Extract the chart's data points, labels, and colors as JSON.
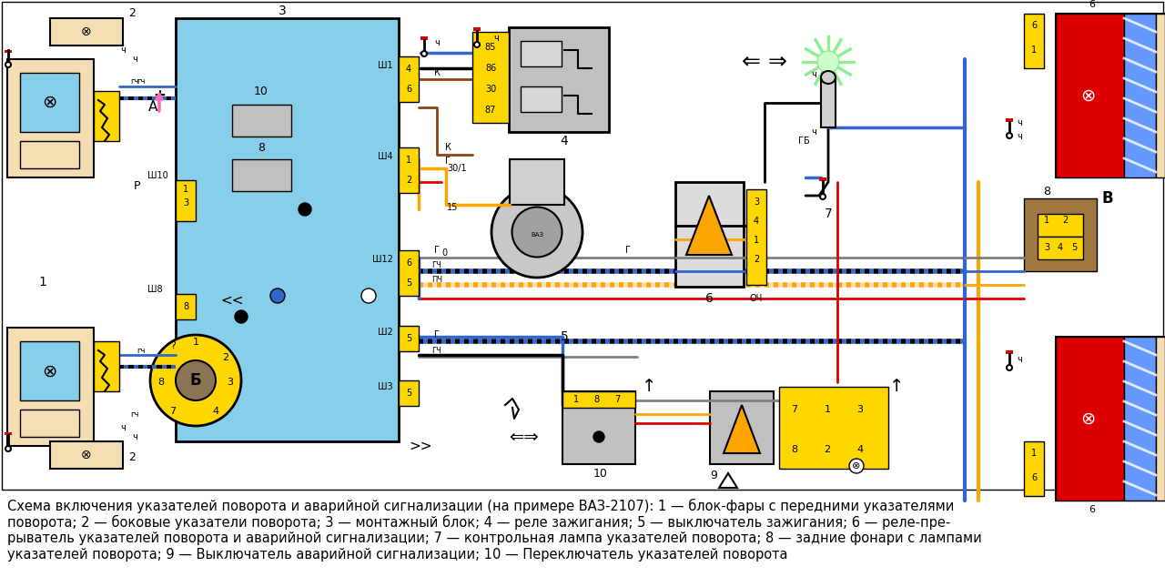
{
  "bg_color": "#ffffff",
  "lightblue": "#87CEEB",
  "yellow": "#FFD700",
  "orange": "#FFA500",
  "red": "#DD0000",
  "blue": "#3366CC",
  "black": "#000000",
  "white": "#FFFFFF",
  "gray": "#C0C0C0",
  "tan": "#F5DEB3",
  "brown": "#A0784A",
  "green_dot": "#00CC00",
  "caption_line1": "Схема включения указателей поворота и аварийной сигнализации (на примере ВАЗ-2107): 1 — блок-фары с передними указателями",
  "caption_line2": "поворота; 2 — боковые указатели поворота; 3 — монтажный блок; 4 — реле зажигания; 5 — выключатель зажигания; 6 — реле-пре-",
  "caption_line3": "рыватель указателей поворота и аварийной сигнализации; 7 — контрольная лампа указателей поворота; 8 — задние фонари с лампами",
  "caption_line4": "указателей поворота; 9 — Выключатель аварийной сигнализации; 10 — Переключатель указателей поворота",
  "cap_fs": 10.5
}
